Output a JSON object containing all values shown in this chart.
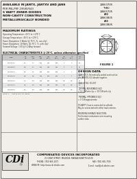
{
  "bg_color": "#f2efea",
  "title_top_left": "AVAILABLE IN JANTX, JANTXV AND JANS",
  "subtitle1": "PER MIL-PRF-19500/543",
  "subtitle2": "5 WATT ZENER DIODES",
  "subtitle3": "NON-CAVITY CONSTRUCTION",
  "subtitle4": "METALLURGICALLY BONDED",
  "pn_lines": [
    "1N6637US",
    "THRU",
    "1N6657US",
    "AND",
    "1N6638US",
    "AND",
    "1N6638US"
  ],
  "section_max_ratings": "MAXIMUM RATINGS",
  "max_ratings_lines": [
    "Operating Temperature: -65°C to +175°C",
    "Storage Temperature: -65°C to +175°C",
    "Power Dissipation: 5 Watts (@ 75°C, Tc, non-clip)",
    "Power Dissipation: 10 Watts (@ 75°C, Tc, with clip)",
    "Forward Voltage: 1.5V @ 5.0 Amp forward"
  ],
  "table_title": "ELECTRICAL CHARACTERISTICS @ 25°C, unless otherwise specified",
  "types": [
    "1N6637US",
    "1N6638US",
    "1N6639US",
    "1N6640US",
    "1N6641US",
    "1N6642US",
    "1N6643US"
  ],
  "vz": [
    "5.1",
    "5.6",
    "6.2",
    "6.8",
    "7.5",
    "8.2",
    "9.1"
  ],
  "zzt": [
    "1.7",
    "1.7",
    "2.0",
    "3.5",
    "4.0",
    "4.5",
    "5.0"
  ],
  "zzk": [
    "600",
    "600",
    "600",
    "600",
    "600",
    "600",
    "700"
  ],
  "izm": [
    "695",
    "625",
    "565",
    "515",
    "465",
    "430",
    "385"
  ],
  "izt": [
    "350",
    "350",
    "350",
    "350",
    "350",
    "350",
    "350"
  ],
  "izk": [
    "1",
    "1",
    "1",
    "1",
    "0.5",
    "0.5",
    "0.5"
  ],
  "ir": [
    "2",
    "1",
    "1",
    "1",
    "0.5",
    "0.5",
    "0.5"
  ],
  "ism": [
    "15",
    "15",
    "15",
    "13",
    "12",
    "11",
    "10"
  ],
  "note": "NOTE 1:    Itest at 1mA for Zener",
  "figure_label": "FIGURE 1",
  "design_data_title": "DESIGN DATA",
  "dd_lines": [
    "CASE: DO-5, Hermetically sealed construction",
    "per JAN STD-313, Anode negative.",
    "",
    "CASE STYLE: DO-257",
    "",
    "THERMAL RESISTANCE (θJC)",
    "= 25°C/W w/o clip, = 10°C/W with clip",
    "",
    "THERMAL IMPEDANCE (θJC)",
    "= 3°C/W approximate",
    "",
    "POLARITY: Case is connected to cathode.",
    "May be connected with either lead common.",
    "",
    "MOUNTING SURFACE SELECTION:",
    "For thermal conductance see mounting",
    "surface data."
  ],
  "company_name": "COMPENSATED DEVICES INCORPORATED",
  "address": "20 COREY STREET, MELROSE, MASSACHUSETTS 02176",
  "phone": "PHONE: (781) 665-1071",
  "fax": "FAX: (781) 665-7705",
  "website": "WEBSITE: http://www.cdi-diodes.com",
  "email": "E-mail: mail@cdi-diodes.com",
  "line_color": "#777777",
  "table_header_bg": "#c8c8c8",
  "table_row_even": "#ffffff",
  "table_row_odd": "#e6e6e6"
}
